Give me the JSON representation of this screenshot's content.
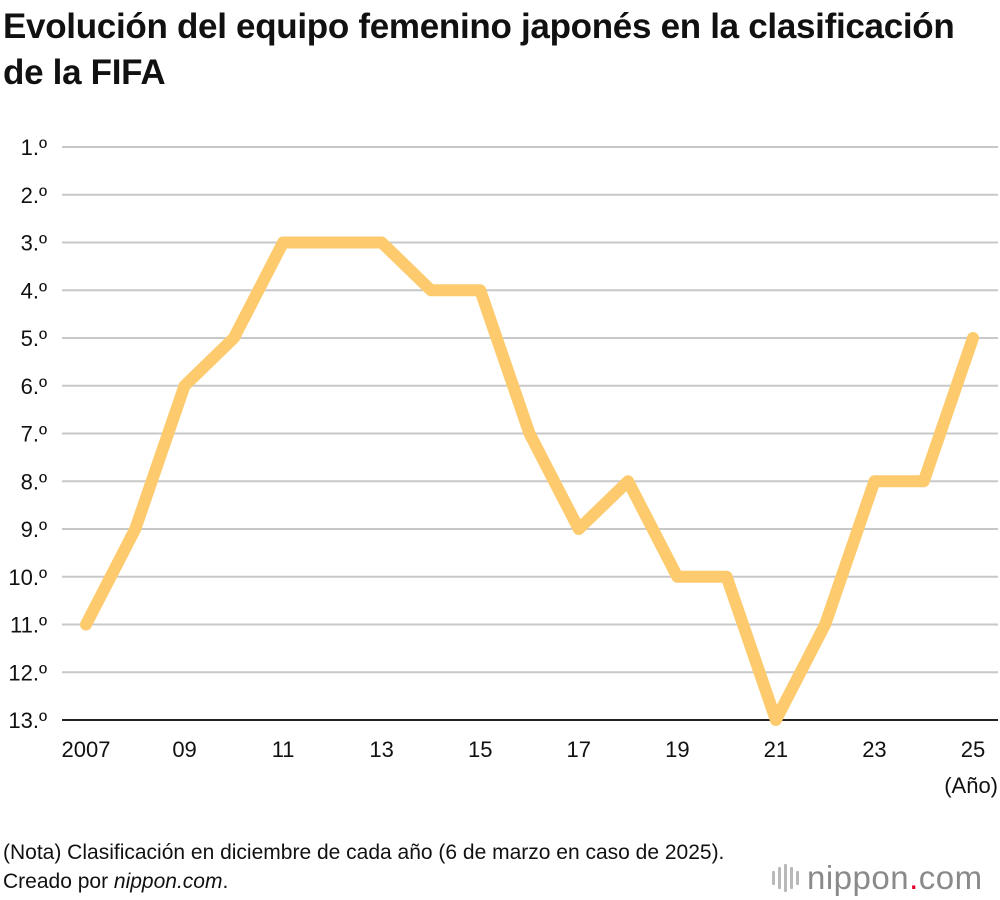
{
  "title": "Evolución del equipo femenino japonés en la clasificación de la FIFA",
  "note": {
    "prefix": "(Nota) Clasificación en diciembre de cada año (6 de marzo en caso de 2025). Creado por ",
    "source": "nippon.com",
    "suffix": "."
  },
  "logo": {
    "name": "nippon",
    "dot": ".",
    "tld": "com"
  },
  "chart_data": {
    "type": "line",
    "xlabel": "(Año)",
    "ylabel": "",
    "x": [
      2007,
      2008,
      2009,
      2010,
      2011,
      2012,
      2013,
      2014,
      2015,
      2016,
      2017,
      2018,
      2019,
      2020,
      2021,
      2022,
      2023,
      2024,
      2025
    ],
    "x_tick_values": [
      2007,
      2009,
      2011,
      2013,
      2015,
      2017,
      2019,
      2021,
      2023,
      2025
    ],
    "x_tick_labels": [
      "2007",
      "09",
      "11",
      "13",
      "15",
      "17",
      "19",
      "21",
      "23",
      "25"
    ],
    "y_tick_values": [
      1,
      2,
      3,
      4,
      5,
      6,
      7,
      8,
      9,
      10,
      11,
      12,
      13
    ],
    "y_tick_labels": [
      "1.º",
      "2.º",
      "3.º",
      "4.º",
      "5.º",
      "6.º",
      "7.º",
      "8.º",
      "9.º",
      "10.º",
      "11.º",
      "12.º",
      "13.º"
    ],
    "ylim": [
      1,
      13
    ],
    "y_inverted": true,
    "grid": true,
    "series": [
      {
        "values": [
          11,
          9,
          6,
          5,
          3,
          3,
          3,
          4,
          4,
          7,
          9,
          8,
          10,
          10,
          13,
          11,
          8,
          8,
          5
        ],
        "color": "#fdcb6e"
      }
    ],
    "colors": {
      "line": "#fdcb6e",
      "grid": "#c8c8c8",
      "axis": "#222222"
    }
  }
}
